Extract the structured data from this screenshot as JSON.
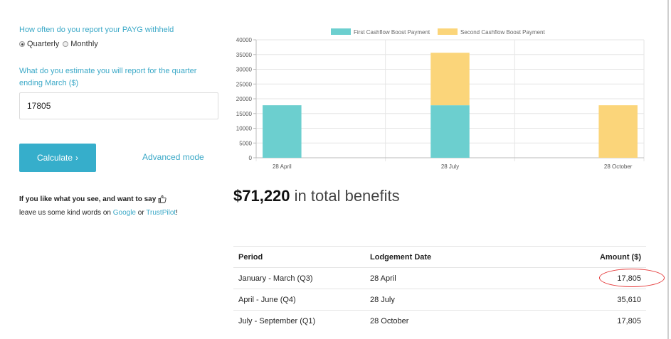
{
  "form": {
    "frequency_question": "How often do you report your PAYG withheld",
    "frequency_options": [
      {
        "label": "Quarterly",
        "checked": true
      },
      {
        "label": "Monthly",
        "checked": false
      }
    ],
    "estimate_question": "What do you estimate you will report for the quarter ending March ($)",
    "estimate_value": "17805",
    "calculate_label": "Calculate",
    "calculate_icon": "chevron-right-icon",
    "advanced_label": "Advanced mode"
  },
  "feedback": {
    "prompt": "If you like what you see, and want to say",
    "prompt_icon": "thumbs-up-icon",
    "kind_words_prefix": "leave us some kind words on",
    "google_label": "Google",
    "or_label": "or",
    "trustpilot_label": "TrustPilot",
    "suffix": "!"
  },
  "total": {
    "amount": "$71,220",
    "suffix": "in total benefits"
  },
  "table": {
    "headers": [
      "Period",
      "Lodgement Date",
      "Amount ($)"
    ],
    "rows": [
      {
        "period": "January - March (Q3)",
        "date": "28 April",
        "amount": "17,805",
        "highlighted": true
      },
      {
        "period": "April - June (Q4)",
        "date": "28 July",
        "amount": "35,610",
        "highlighted": false
      },
      {
        "period": "July - September (Q1)",
        "date": "28 October",
        "amount": "17,805",
        "highlighted": false
      }
    ]
  },
  "colors": {
    "accent": "#36aecb",
    "first_series": "#6ccfcf",
    "second_series": "#fbd57a",
    "highlight": "#e53a3a"
  },
  "chart_data": {
    "type": "bar",
    "stacked": true,
    "categories": [
      "28 April",
      "28 July",
      "28 October"
    ],
    "series": [
      {
        "name": "First Cashflow Boost Payment",
        "values": [
          17805,
          17805,
          0
        ],
        "color": "#6ccfcf"
      },
      {
        "name": "Second Cashflow Boost Payment",
        "values": [
          0,
          17805,
          17805
        ],
        "color": "#fbd57a"
      }
    ],
    "ylim": [
      0,
      40000
    ],
    "yticks": [
      0,
      5000,
      10000,
      15000,
      20000,
      25000,
      30000,
      35000,
      40000
    ],
    "grid": true,
    "legend": "top"
  }
}
